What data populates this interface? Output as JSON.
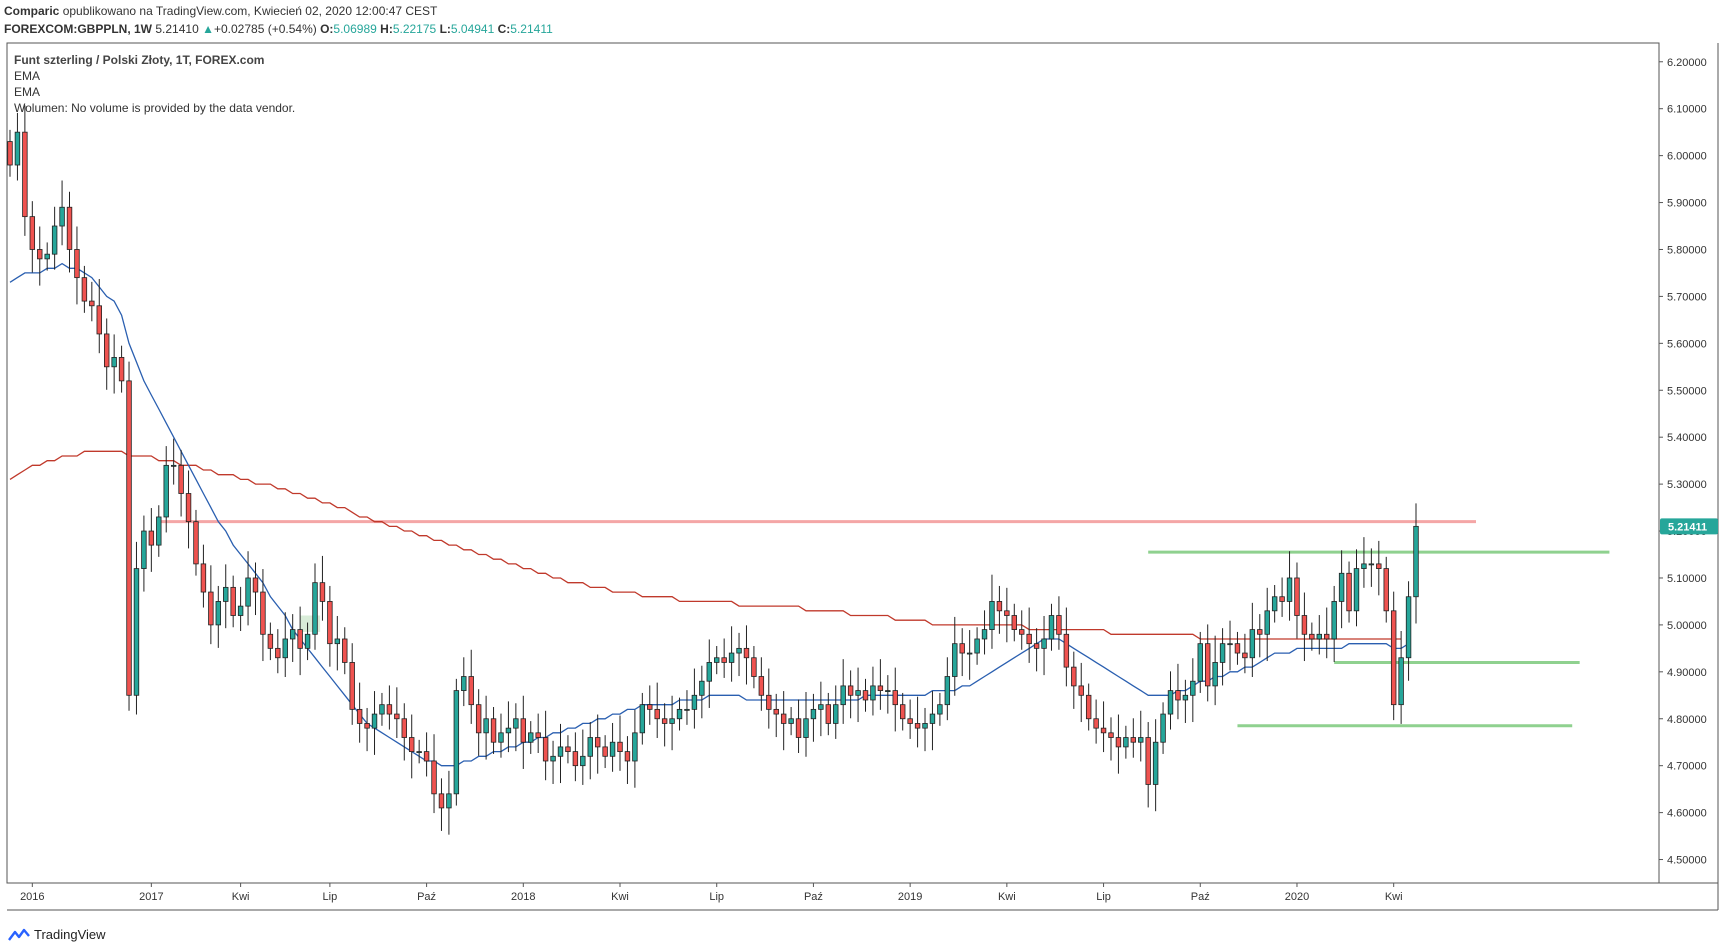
{
  "header": {
    "author": "Comparic",
    "published": "opublikowano na TradingView.com, Kwiecień 02, 2020 12:00:47 CEST",
    "symbol": "FOREXCOM:GBPPLN, 1W",
    "last": "5.21410",
    "change": "+0.02785 (+0.54%)",
    "o_label": "O:",
    "o": "5.06989",
    "h_label": "H:",
    "h": "5.22175",
    "l_label": "L:",
    "l": "5.04941",
    "c_label": "C:",
    "c": "5.21411"
  },
  "legend": {
    "title": "Funt szterling / Polski Złoty, 1T, FOREX.com",
    "ema1": "EMA",
    "ema2": "EMA",
    "volume": "Wolumen: No volume is provided by the data vendor."
  },
  "footer": {
    "brand": "TradingView"
  },
  "colors": {
    "up": "#26a69a",
    "down": "#ef5350",
    "ema_fast": "#2a5fb0",
    "ema_slow": "#c0392b",
    "resistance": "#f4a6a6",
    "support": "#8fd18f",
    "price_tag": "#26a69a"
  },
  "chart_data": {
    "type": "candlestick",
    "ylim": [
      4.45,
      6.24
    ],
    "y_ticks": [
      "4.50000",
      "4.60000",
      "4.70000",
      "4.80000",
      "4.90000",
      "5.00000",
      "5.10000",
      "5.20000",
      "5.30000",
      "5.40000",
      "5.50000",
      "5.60000",
      "5.70000",
      "5.80000",
      "5.90000",
      "6.00000",
      "6.10000",
      "6.20000"
    ],
    "x_labels": [
      "2016",
      "2017",
      "Kwi",
      "Lip",
      "Paź",
      "2018",
      "Kwi",
      "Lip",
      "Paź",
      "2019",
      "Kwi",
      "Lip",
      "Paź",
      "2020",
      "Kwi"
    ],
    "last_price_label": "5.21411",
    "closes": [
      5.98,
      6.05,
      5.87,
      5.8,
      5.78,
      5.79,
      5.85,
      5.89,
      5.8,
      5.74,
      5.69,
      5.68,
      5.62,
      5.55,
      5.57,
      5.52,
      4.85,
      5.12,
      5.2,
      5.17,
      5.23,
      5.34,
      5.34,
      5.28,
      5.22,
      5.13,
      5.07,
      5.0,
      5.05,
      5.08,
      5.02,
      5.04,
      5.1,
      5.07,
      4.98,
      4.95,
      4.93,
      4.97,
      4.99,
      4.95,
      4.98,
      5.09,
      5.05,
      4.96,
      4.97,
      4.92,
      4.82,
      4.79,
      4.78,
      4.81,
      4.83,
      4.81,
      4.8,
      4.76,
      4.73,
      4.73,
      4.71,
      4.64,
      4.61,
      4.64,
      4.86,
      4.89,
      4.83,
      4.77,
      4.8,
      4.75,
      4.77,
      4.78,
      4.8,
      4.75,
      4.77,
      4.76,
      4.71,
      4.72,
      4.74,
      4.73,
      4.7,
      4.72,
      4.76,
      4.74,
      4.72,
      4.75,
      4.73,
      4.71,
      4.77,
      4.83,
      4.82,
      4.8,
      4.79,
      4.8,
      4.82,
      4.82,
      4.85,
      4.88,
      4.92,
      4.93,
      4.92,
      4.94,
      4.95,
      4.93,
      4.89,
      4.85,
      4.82,
      4.81,
      4.79,
      4.8,
      4.76,
      4.8,
      4.82,
      4.83,
      4.79,
      4.83,
      4.87,
      4.85,
      4.86,
      4.84,
      4.87,
      4.86,
      4.86,
      4.83,
      4.8,
      4.79,
      4.78,
      4.79,
      4.81,
      4.83,
      4.89,
      4.96,
      4.94,
      4.94,
      4.97,
      4.99,
      5.05,
      5.03,
      5.02,
      4.99,
      4.98,
      4.96,
      4.95,
      4.97,
      5.02,
      4.98,
      4.91,
      4.87,
      4.85,
      4.8,
      4.78,
      4.77,
      4.76,
      4.74,
      4.76,
      4.75,
      4.76,
      4.66,
      4.75,
      4.81,
      4.86,
      4.84,
      4.85,
      4.88,
      4.96,
      4.87,
      4.92,
      4.96,
      4.96,
      4.94,
      4.93,
      4.99,
      4.98,
      5.03,
      5.06,
      5.05,
      5.1,
      5.02,
      4.98,
      4.97,
      4.98,
      4.97,
      5.05,
      5.11,
      5.03,
      5.12,
      5.13,
      5.13,
      5.12,
      5.03,
      4.83,
      4.93,
      5.06,
      5.21
    ],
    "ema_fast": [
      5.73,
      5.74,
      5.75,
      5.75,
      5.75,
      5.76,
      5.76,
      5.77,
      5.76,
      5.76,
      5.75,
      5.74,
      5.72,
      5.7,
      5.69,
      5.66,
      5.6,
      5.56,
      5.52,
      5.49,
      5.46,
      5.43,
      5.4,
      5.37,
      5.34,
      5.31,
      5.28,
      5.25,
      5.22,
      5.2,
      5.17,
      5.15,
      5.13,
      5.11,
      5.09,
      5.06,
      5.04,
      5.02,
      4.99,
      4.97,
      4.95,
      4.93,
      4.91,
      4.89,
      4.87,
      4.85,
      4.83,
      4.81,
      4.79,
      4.78,
      4.77,
      4.76,
      4.75,
      4.74,
      4.73,
      4.72,
      4.71,
      4.71,
      4.7,
      4.7,
      4.7,
      4.71,
      4.71,
      4.72,
      4.72,
      4.73,
      4.73,
      4.74,
      4.74,
      4.75,
      4.75,
      4.76,
      4.76,
      4.77,
      4.77,
      4.78,
      4.78,
      4.79,
      4.79,
      4.8,
      4.8,
      4.81,
      4.81,
      4.82,
      4.82,
      4.83,
      4.83,
      4.83,
      4.83,
      4.83,
      4.84,
      4.84,
      4.84,
      4.84,
      4.85,
      4.85,
      4.85,
      4.85,
      4.85,
      4.84,
      4.84,
      4.84,
      4.84,
      4.84,
      4.84,
      4.84,
      4.84,
      4.84,
      4.84,
      4.84,
      4.84,
      4.84,
      4.84,
      4.84,
      4.84,
      4.85,
      4.85,
      4.85,
      4.85,
      4.85,
      4.85,
      4.85,
      4.85,
      4.85,
      4.86,
      4.86,
      4.86,
      4.86,
      4.87,
      4.87,
      4.88,
      4.89,
      4.9,
      4.91,
      4.92,
      4.93,
      4.94,
      4.95,
      4.96,
      4.97,
      4.97,
      4.97,
      4.96,
      4.95,
      4.94,
      4.93,
      4.92,
      4.91,
      4.9,
      4.89,
      4.88,
      4.87,
      4.86,
      4.85,
      4.85,
      4.85,
      4.85,
      4.86,
      4.86,
      4.87,
      4.88,
      4.88,
      4.89,
      4.89,
      4.9,
      4.9,
      4.91,
      4.91,
      4.92,
      4.93,
      4.94,
      4.94,
      4.94,
      4.95,
      4.95,
      4.95,
      4.95,
      4.95,
      4.95,
      4.95,
      4.96,
      4.96,
      4.96,
      4.96,
      4.96,
      4.96,
      4.95,
      4.95,
      4.96
    ],
    "ema_slow": [
      5.31,
      5.32,
      5.33,
      5.34,
      5.34,
      5.35,
      5.35,
      5.36,
      5.36,
      5.36,
      5.37,
      5.37,
      5.37,
      5.37,
      5.37,
      5.37,
      5.36,
      5.36,
      5.36,
      5.36,
      5.35,
      5.35,
      5.35,
      5.34,
      5.34,
      5.34,
      5.33,
      5.33,
      5.32,
      5.32,
      5.32,
      5.31,
      5.31,
      5.3,
      5.3,
      5.3,
      5.29,
      5.29,
      5.28,
      5.28,
      5.27,
      5.27,
      5.26,
      5.26,
      5.25,
      5.25,
      5.24,
      5.23,
      5.23,
      5.22,
      5.22,
      5.21,
      5.21,
      5.2,
      5.2,
      5.19,
      5.19,
      5.18,
      5.18,
      5.17,
      5.17,
      5.16,
      5.16,
      5.15,
      5.15,
      5.14,
      5.14,
      5.13,
      5.13,
      5.12,
      5.12,
      5.11,
      5.11,
      5.1,
      5.1,
      5.09,
      5.09,
      5.09,
      5.08,
      5.08,
      5.08,
      5.07,
      5.07,
      5.07,
      5.07,
      5.06,
      5.06,
      5.06,
      5.06,
      5.06,
      5.05,
      5.05,
      5.05,
      5.05,
      5.05,
      5.05,
      5.05,
      5.05,
      5.04,
      5.04,
      5.04,
      5.04,
      5.04,
      5.04,
      5.04,
      5.04,
      5.04,
      5.03,
      5.03,
      5.03,
      5.03,
      5.03,
      5.03,
      5.02,
      5.02,
      5.02,
      5.02,
      5.02,
      5.02,
      5.01,
      5.01,
      5.01,
      5.01,
      5.01,
      5.0,
      5.0,
      5.0,
      5.0,
      5.0,
      5.0,
      5.0,
      5.0,
      5.0,
      5.0,
      5.0,
      5.0,
      5.0,
      4.99,
      4.99,
      4.99,
      4.99,
      4.99,
      4.99,
      4.99,
      4.99,
      4.99,
      4.99,
      4.99,
      4.98,
      4.98,
      4.98,
      4.98,
      4.98,
      4.98,
      4.98,
      4.98,
      4.98,
      4.98,
      4.98,
      4.98,
      4.97,
      4.97,
      4.97,
      4.97,
      4.97,
      4.97,
      4.97,
      4.97,
      4.97,
      4.97,
      4.97,
      4.97,
      4.97,
      4.97,
      4.97,
      4.97,
      4.97,
      4.97,
      4.97,
      4.97,
      4.97,
      4.97,
      4.97,
      4.97,
      4.97,
      4.97,
      4.97,
      4.97
    ],
    "resistance_level": 5.22,
    "support_levels": [
      {
        "value": 5.155,
        "from_index": 153,
        "to_index": 215
      },
      {
        "value": 4.92,
        "from_index": 178,
        "to_index": 211
      },
      {
        "value": 4.785,
        "from_index": 165,
        "to_index": 210
      }
    ]
  }
}
